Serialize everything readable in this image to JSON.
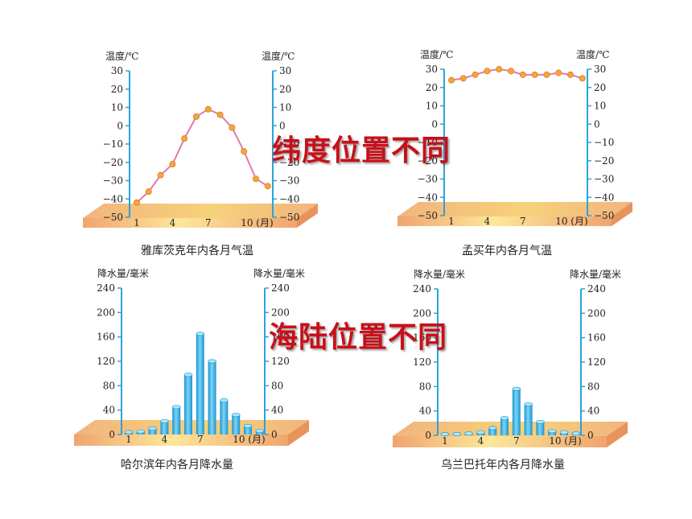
{
  "overlays": {
    "top": "纬度位置不同",
    "bottom": "海陆位置不同"
  },
  "chart_data": [
    {
      "type": "line",
      "title": "雅库茨克年内各月气温",
      "ylabel_left": "温度/℃",
      "ylabel_right": "温度/℃",
      "ylim": [
        -50,
        30
      ],
      "yticks": [
        -50,
        -40,
        -30,
        -20,
        -10,
        0,
        10,
        20,
        30
      ],
      "x": [
        1,
        2,
        3,
        4,
        5,
        6,
        7,
        8,
        9,
        10,
        11,
        12
      ],
      "xtick_labels": [
        "1",
        "4",
        "7",
        "10 (月)"
      ],
      "values": [
        -42,
        -36,
        -27,
        -21,
        -7,
        5,
        9,
        6,
        -1,
        -14,
        -29,
        -33
      ],
      "line_color": "#e07ab0",
      "marker_color": "#f5a53b"
    },
    {
      "type": "line",
      "title": "孟买年内各月气温",
      "ylabel_left": "温度/℃",
      "ylabel_right": "温度/℃",
      "ylim": [
        -50,
        30
      ],
      "yticks": [
        -50,
        -40,
        -30,
        -20,
        -10,
        0,
        10,
        20,
        30
      ],
      "x": [
        1,
        2,
        3,
        4,
        5,
        6,
        7,
        8,
        9,
        10,
        11,
        12
      ],
      "xtick_labels": [
        "1",
        "4",
        "7",
        "10 (月)"
      ],
      "values": [
        24,
        25,
        27,
        29,
        30,
        29,
        27,
        27,
        27,
        28,
        27,
        25
      ],
      "line_color": "#e07ab0",
      "marker_color": "#f5a53b"
    },
    {
      "type": "bar",
      "title": "哈尔滨年内各月降水量",
      "ylabel_left": "降水量/毫米",
      "ylabel_right": "降水量/毫米",
      "ylim": [
        0,
        240
      ],
      "yticks": [
        0,
        40,
        80,
        120,
        160,
        200,
        240
      ],
      "categories": [
        "1",
        "2",
        "3",
        "4",
        "5",
        "6",
        "7",
        "8",
        "9",
        "10",
        "11",
        "12"
      ],
      "xtick_labels": [
        "1",
        "4",
        "7",
        "10 (月)"
      ],
      "values": [
        4,
        5,
        10,
        22,
        45,
        98,
        165,
        120,
        56,
        32,
        14,
        6
      ],
      "bar_color": "#3ab6e6"
    },
    {
      "type": "bar",
      "title": "乌兰巴托年内各月降水量",
      "ylabel_left": "降水量/毫米",
      "ylabel_right": "降水量/毫米",
      "ylim": [
        0,
        240
      ],
      "yticks": [
        0,
        40,
        80,
        120,
        160,
        200,
        240
      ],
      "categories": [
        "1",
        "2",
        "3",
        "4",
        "5",
        "6",
        "7",
        "8",
        "9",
        "10",
        "11",
        "12"
      ],
      "xtick_labels": [
        "1",
        "4",
        "7",
        "10 (月)"
      ],
      "values": [
        2,
        2,
        3,
        5,
        12,
        28,
        76,
        51,
        22,
        7,
        5,
        3
      ],
      "bar_color": "#3ab6e6"
    }
  ]
}
